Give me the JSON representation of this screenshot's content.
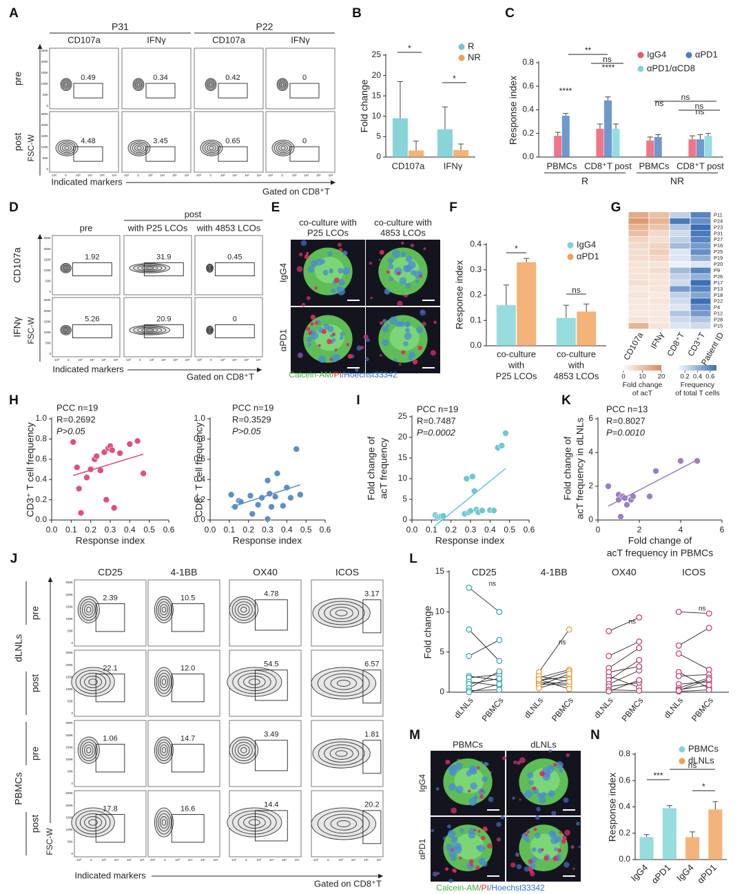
{
  "flow_axes": {
    "yticks": [
      "250K",
      "200K",
      "150K",
      "100K",
      "50K",
      "0"
    ],
    "xticks": [
      "-10³",
      "0",
      "10³",
      "10⁴",
      "10⁵",
      "10⁶"
    ],
    "ylabel": "FSC-W"
  },
  "flow_A": {
    "letter": "A",
    "groups": [
      "P31",
      "P22"
    ],
    "columns": [
      "CD107a",
      "IFNγ",
      "CD107a",
      "IFNγ"
    ],
    "rows": [
      "pre",
      "post"
    ],
    "gates": [
      [
        "0.49",
        "0.34",
        "0.42",
        "0"
      ],
      [
        "4.48",
        "3.45",
        "0.65",
        "0"
      ]
    ],
    "xlabel": "Indicated markers",
    "note": "Gated on CD8⁺T"
  },
  "flow_D": {
    "letter": "D",
    "group": "post",
    "columns": [
      "pre",
      "with P25 LCOs",
      "with 4853 LCOs"
    ],
    "rows": [
      "CD107a",
      "IFNγ"
    ],
    "gates": [
      [
        "1.92",
        "31.9",
        "0.45"
      ],
      [
        "5.26",
        "20.9",
        "0"
      ]
    ],
    "xlabel": "Indicated markers",
    "note": "Gated on CD8⁺T"
  },
  "flow_J": {
    "letter": "J",
    "columns": [
      "CD25",
      "4-1BB",
      "OX40",
      "ICOS"
    ],
    "groups": [
      "dLNLs",
      "PBMCs"
    ],
    "rows": [
      "pre",
      "post",
      "pre",
      "post"
    ],
    "gates": [
      [
        "2.39",
        "10.5",
        "4.78",
        "3.17"
      ],
      [
        "22.1",
        "12.0",
        "54.5",
        "6.57"
      ],
      [
        "1.06",
        "14.7",
        "3.49",
        "1.81"
      ],
      [
        "17.8",
        "16.6",
        "14.4",
        "20.2"
      ]
    ],
    "xlabel": "Indicated markers",
    "note": "Gated on CD8⁺T"
  },
  "images_E": {
    "letter": "E",
    "columns": [
      [
        "co-culture with",
        "P25 LCOs"
      ],
      [
        "co-culture with",
        "4853 LCOs"
      ]
    ],
    "rows": [
      "IgG4",
      "αPD1"
    ],
    "caption": [
      "Calcein-AM",
      "/PI",
      "/Hoechst33342"
    ]
  },
  "images_M": {
    "letter": "M",
    "columns": [
      "PBMCs",
      "dLNLs"
    ],
    "rows": [
      "IgG4",
      "αPD1"
    ],
    "caption": [
      "Calcein-AM",
      "/PI",
      "/Hoechst33342"
    ]
  },
  "chart_data": [
    {
      "type": "bar",
      "letter": "B",
      "ylabel": "Fold change",
      "categories": [
        "CD107a",
        "IFNγ"
      ],
      "series": [
        {
          "name": "R",
          "color": "#6cc9d0",
          "values": [
            9.5,
            6.8
          ],
          "errors": [
            9.0,
            5.5
          ]
        },
        {
          "name": "NR",
          "color": "#f0a058",
          "values": [
            1.6,
            1.7
          ],
          "errors": [
            2.3,
            1.5
          ]
        }
      ],
      "ylim": [
        0,
        25
      ],
      "yticks": [
        0,
        5,
        10,
        15,
        20,
        25
      ],
      "annotations": [
        "*",
        "*"
      ]
    },
    {
      "type": "bar",
      "letter": "C",
      "ylabel": "Response index",
      "categories": [
        "PBMCs",
        "CD8⁺T post",
        "PBMCs",
        "CD8⁺T post"
      ],
      "groups": [
        "R",
        "NR"
      ],
      "series": [
        {
          "name": "IgG4",
          "color": "#e8546e",
          "values": [
            0.18,
            0.24,
            0.14,
            0.15
          ],
          "errors": [
            0.03,
            0.04,
            0.03,
            0.03
          ]
        },
        {
          "name": "αPD1",
          "color": "#4a7fc0",
          "values": [
            0.35,
            0.48,
            0.17,
            0.15
          ],
          "errors": [
            0.02,
            0.03,
            0.02,
            0.04
          ]
        },
        {
          "name": "αPD1/αCD8",
          "color": "#7dd3d6",
          "values": [
            null,
            0.24,
            null,
            0.18
          ],
          "errors": [
            null,
            0.04,
            null,
            0.02
          ]
        }
      ],
      "ylim": [
        0,
        0.8
      ],
      "yticks": [
        {
          "value": 0,
          "label": "0.0"
        },
        0.2,
        0.4,
        0.6,
        0.8
      ],
      "annotations": [
        "**",
        "ns",
        "****",
        "****",
        "ns",
        "ns",
        "ns",
        "ns"
      ]
    },
    {
      "type": "bar",
      "letter": "F",
      "ylabel": "Response index",
      "categories": [
        [
          "co-culture",
          "with",
          "P25 LCOs"
        ],
        [
          "co-culture",
          "with",
          "4853 LCOs"
        ]
      ],
      "series": [
        {
          "name": "IgG4",
          "color": "#7dd3d6",
          "values": [
            0.16,
            0.11
          ],
          "errors": [
            0.08,
            0.05
          ]
        },
        {
          "name": "αPD1",
          "color": "#f0a058",
          "values": [
            0.33,
            0.135
          ],
          "errors": [
            0.015,
            0.03
          ]
        }
      ],
      "ylim": [
        0,
        0.4
      ],
      "yticks": [
        {
          "value": 0,
          "label": "0.0"
        },
        0.1,
        0.2,
        0.3,
        0.4
      ],
      "annotations": [
        "*",
        "ns"
      ]
    },
    {
      "type": "heatmap",
      "letter": "G",
      "columns": [
        "CD107a",
        "IFNγ",
        "CD8⁺T",
        "CD3⁺T"
      ],
      "id_label": "Patient ID",
      "rows": [
        "P11",
        "P24",
        "P23",
        "P31",
        "P27",
        "P16",
        "P25",
        "P19",
        "P20",
        "P9",
        "P26",
        "P17",
        "P13",
        "P18",
        "P22",
        "P4",
        "P12",
        "P28",
        "P15"
      ],
      "values": [
        [
          14,
          10,
          0.25,
          0.6
        ],
        [
          17,
          12,
          0.65,
          0.55
        ],
        [
          12,
          9,
          0.3,
          0.7
        ],
        [
          10,
          5,
          0.2,
          0.65
        ],
        [
          6,
          4,
          0.25,
          0.6
        ],
        [
          5,
          6,
          0.35,
          0.5
        ],
        [
          4,
          7,
          0.15,
          0.55
        ],
        [
          4,
          5,
          0.15,
          0.4
        ],
        [
          3,
          3,
          0.1,
          0.15
        ],
        [
          3,
          4,
          0.35,
          0.6
        ],
        [
          3,
          3,
          0.25,
          0.4
        ],
        [
          4,
          3,
          0.2,
          0.7
        ],
        [
          2,
          3,
          0.5,
          0.6
        ],
        [
          3,
          2,
          0.25,
          0.45
        ],
        [
          2,
          3,
          0.2,
          0.7
        ],
        [
          2,
          2,
          0.15,
          0.55
        ],
        [
          2,
          2,
          0.3,
          0.5
        ],
        [
          3,
          2,
          0.2,
          0.3
        ],
        [
          12,
          3,
          0.15,
          0.2
        ]
      ],
      "column_scale": [
        0,
        0,
        1,
        1
      ],
      "scales": [
        {
          "title": [
            "Fold change",
            "of acT"
          ],
          "lim": [
            0,
            20
          ],
          "ticks": [
            0,
            10,
            20
          ],
          "color": "#d98a5a"
        },
        {
          "title": [
            "Frequency",
            "of total T cells"
          ],
          "lim": [
            0.1,
            0.7
          ],
          "ticks": [
            0.2,
            0.4,
            0.6
          ],
          "color": "#3b6fb6"
        }
      ]
    },
    {
      "type": "scatter",
      "letter": "H",
      "color": "#e0507a",
      "stats": [
        "PCC n=19",
        "R=0.2692",
        "P>0.05"
      ],
      "xlabel": [
        "Response index"
      ],
      "ylabel": [
        "CD3⁺ T cell frequency"
      ],
      "x": [
        0.11,
        0.13,
        0.14,
        0.15,
        0.18,
        0.2,
        0.22,
        0.23,
        0.25,
        0.27,
        0.28,
        0.29,
        0.3,
        0.31,
        0.32,
        0.35,
        0.4,
        0.44,
        0.47
      ],
      "y": [
        0.77,
        0.52,
        0.31,
        0.07,
        0.42,
        0.5,
        0.6,
        0.63,
        0.49,
        0.67,
        0.2,
        0.71,
        0.73,
        0.69,
        0.12,
        0.66,
        0.75,
        0.78,
        0.46
      ],
      "xlim": [
        0,
        0.6
      ],
      "xticks": [
        {
          "value": 0,
          "label": "0.0"
        },
        0.1,
        0.2,
        0.3,
        0.4,
        0.5,
        0.6
      ],
      "ylim": [
        0,
        1
      ],
      "yticks": [
        {
          "value": 0,
          "label": "0.0"
        },
        0.2,
        0.4,
        0.6,
        0.8,
        {
          "value": 1,
          "label": "1.0"
        }
      ]
    },
    {
      "type": "scatter",
      "color": "#5b8fc9",
      "stats": [
        "PCC n=19",
        "R=0.3529",
        "P>0.05"
      ],
      "xlabel": [
        "Response index"
      ],
      "ylabel": [
        "CD8⁺ T cell frequency"
      ],
      "x": [
        0.11,
        0.13,
        0.15,
        0.16,
        0.21,
        0.22,
        0.25,
        0.27,
        0.3,
        0.31,
        0.3,
        0.32,
        0.34,
        0.35,
        0.38,
        0.4,
        0.42,
        0.45,
        0.47
      ],
      "y": [
        0.25,
        0.13,
        0.19,
        0.18,
        0.24,
        0.06,
        0.15,
        0.22,
        0.39,
        0.26,
        0.01,
        0.13,
        0.23,
        0.46,
        0.14,
        0.32,
        0.22,
        0.7,
        0.25
      ],
      "xlim": [
        0,
        0.6
      ],
      "xticks": [
        {
          "value": 0,
          "label": "0.0"
        },
        0.1,
        0.2,
        0.3,
        0.4,
        0.5,
        0.6
      ],
      "ylim": [
        0,
        1
      ],
      "yticks": [
        {
          "value": 0,
          "label": "0.0"
        },
        0.2,
        0.4,
        0.6,
        0.8,
        {
          "value": 1,
          "label": "1.0"
        }
      ]
    },
    {
      "type": "scatter",
      "letter": "I",
      "color": "#6cc9d0",
      "stats": [
        "PCC n=19",
        "R=0.7487",
        "P=0.0002"
      ],
      "xlabel": [
        "Response index"
      ],
      "ylabel": [
        "Fold change of",
        "acT frequency"
      ],
      "x": [
        0.12,
        0.13,
        0.14,
        0.15,
        0.16,
        0.27,
        0.28,
        0.29,
        0.3,
        0.31,
        0.32,
        0.33,
        0.34,
        0.36,
        0.4,
        0.42,
        0.44,
        0.46,
        0.48
      ],
      "y": [
        1.2,
        0.8,
        0.7,
        0.9,
        1.0,
        1.5,
        10.0,
        1.8,
        2.2,
        10.5,
        7.0,
        2.5,
        1.9,
        2.3,
        2.4,
        2.3,
        17.5,
        18.0,
        21.0
      ],
      "xlim": [
        0,
        0.6
      ],
      "xticks": [
        {
          "value": 0,
          "label": "0.0"
        },
        0.1,
        0.2,
        0.3,
        0.4,
        0.5,
        0.6
      ],
      "ylim": [
        0,
        25
      ],
      "yticks": [
        0,
        5,
        10,
        15,
        20,
        25
      ]
    },
    {
      "type": "scatter",
      "letter": "K",
      "color": "#9b7fc4",
      "stats": [
        "PCC n=13",
        "R=0.8027",
        "P=0.0010"
      ],
      "xlabel": [
        "Fold change of",
        "acT frequency in PBMCs"
      ],
      "ylabel": [
        "Fold change of",
        "acT frequency in dLNLs"
      ],
      "x": [
        0.5,
        1.0,
        1.0,
        1.1,
        1.2,
        1.3,
        1.4,
        1.6,
        1.7,
        2.5,
        2.8,
        4.0,
        4.8
      ],
      "y": [
        2.0,
        1.5,
        1.2,
        0.2,
        1.4,
        1.3,
        0.9,
        1.2,
        1.4,
        1.4,
        2.9,
        3.5,
        3.5
      ],
      "xlim": [
        0,
        6
      ],
      "xticks": [
        0,
        2,
        4,
        6
      ],
      "ylim": [
        0,
        6
      ],
      "yticks": [
        0,
        2,
        4,
        6
      ]
    },
    {
      "type": "paired",
      "letter": "L",
      "ylabel": "Fold change",
      "pair_labels": [
        "dLNLs",
        "PBMCs"
      ],
      "groups": [
        {
          "name": "CD25",
          "color": "#3aa8b4",
          "annotation": "ns",
          "dLNLs": [
            13,
            7.8,
            4.5,
            2,
            1.8,
            1.3,
            1,
            0.5,
            0.2,
            0
          ],
          "PBMCs": [
            10,
            3.9,
            6.5,
            1.5,
            2.2,
            0.8,
            1.7,
            2.6,
            0.3,
            1.0
          ]
        },
        {
          "name": "4-1BB",
          "color": "#e0a040",
          "annotation": "ns",
          "dLNLs": [
            2.5,
            1.8,
            1.5,
            1.4,
            1.2,
            1.0,
            0.8,
            0.5,
            2.0,
            1.6
          ],
          "PBMCs": [
            7.8,
            2.8,
            1.9,
            2.6,
            1.1,
            0.9,
            2.3,
            1.6,
            1.3,
            0.4
          ]
        },
        {
          "name": "OX40",
          "color": "#c0407a",
          "annotation": "ns",
          "dLNLs": [
            7.6,
            4.5,
            3.0,
            2.0,
            1.5,
            1.0,
            0.7,
            0.3,
            0.1,
            2.5
          ],
          "PBMCs": [
            9.3,
            6.3,
            5.5,
            0.6,
            4.0,
            2.7,
            1.2,
            0.2,
            1.5,
            3.2
          ]
        },
        {
          "name": "ICOS",
          "color": "#c8407a",
          "annotation": "ns",
          "dLNLs": [
            10,
            5.8,
            4.8,
            2.5,
            2.0,
            1.0,
            0.5,
            0.3,
            0.1,
            0.2
          ],
          "PBMCs": [
            9.8,
            8.0,
            2.8,
            0.5,
            2.2,
            1.3,
            1.8,
            0.9,
            0.3,
            1.6
          ]
        }
      ],
      "ylim": [
        0,
        15
      ],
      "yticks": [
        0,
        5,
        10,
        15
      ]
    },
    {
      "type": "bar",
      "letter": "N",
      "ylabel": "Response index",
      "categories": [
        "IgG4",
        "αPD1",
        "IgG4",
        "αPD1"
      ],
      "series": [
        {
          "name": "PBMCs",
          "color": "#7dd3d6",
          "values": [
            0.17,
            0.39,
            null,
            null
          ],
          "errors": [
            0.02,
            0.02,
            null,
            null
          ]
        },
        {
          "name": "dLNLs",
          "color": "#f0a058",
          "values": [
            null,
            null,
            0.17,
            0.38
          ],
          "errors": [
            null,
            null,
            0.04,
            0.06
          ]
        }
      ],
      "ylim": [
        0,
        0.8
      ],
      "yticks": [
        {
          "value": 0,
          "label": "0.0"
        },
        0.2,
        0.4,
        0.6,
        0.8
      ],
      "annotations": [
        "***",
        "ns",
        "*"
      ]
    }
  ]
}
